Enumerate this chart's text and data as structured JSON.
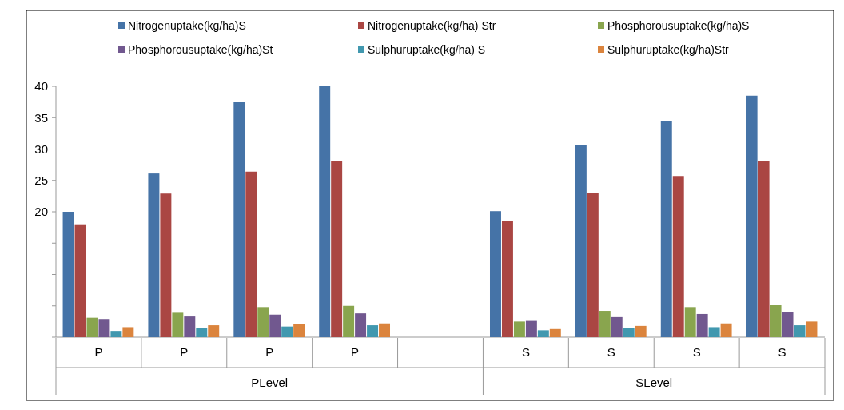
{
  "chart_data": {
    "type": "bar",
    "categories": [
      "P",
      "P",
      "P",
      "P",
      null,
      "S",
      "S",
      "S",
      "S"
    ],
    "series": [
      {
        "name": "Nitrogenuptake(kg/ha)S",
        "color": "#4573a7",
        "values": [
          20,
          26.1,
          37.5,
          40,
          null,
          20.1,
          30.7,
          34.5,
          38.5
        ]
      },
      {
        "name": "Nitrogenuptake(kg/ha) Str",
        "color": "#aa4643",
        "values": [
          18,
          22.9,
          26.4,
          28.1,
          null,
          18.6,
          23,
          25.7,
          28.1
        ]
      },
      {
        "name": "Phosphorousuptake(kg/ha)S",
        "color": "#89a54e",
        "values": [
          3.1,
          3.9,
          4.8,
          5,
          null,
          2.5,
          4.2,
          4.8,
          5.1
        ]
      },
      {
        "name": "Phosphorousuptake(kg/ha)St",
        "color": "#71588f",
        "values": [
          2.9,
          3.3,
          3.6,
          3.8,
          null,
          2.6,
          3.2,
          3.7,
          4
        ]
      },
      {
        "name": "Sulphuruptake(kg/ha) S",
        "color": "#4198af",
        "values": [
          1,
          1.4,
          1.7,
          1.9,
          null,
          1.1,
          1.4,
          1.6,
          1.9
        ]
      },
      {
        "name": "Sulphuruptake(kg/ha)Str",
        "color": "#db843d",
        "values": [
          1.6,
          1.9,
          2.1,
          2.2,
          null,
          1.3,
          1.8,
          2.2,
          2.5
        ]
      }
    ],
    "ylim": [
      0,
      40
    ],
    "yticks": [
      {
        "value": 0,
        "label": null
      },
      {
        "value": 5,
        "label": null
      },
      {
        "value": 10,
        "label": null
      },
      {
        "value": 15,
        "label": null
      },
      {
        "value": 20,
        "label": "20"
      },
      {
        "value": 25,
        "label": "25"
      },
      {
        "value": 30,
        "label": "30"
      },
      {
        "value": 35,
        "label": "35"
      },
      {
        "value": 40,
        "label": "40"
      }
    ],
    "annotations": [
      "PLevel",
      "SLevel"
    ],
    "legend": "top",
    "grid": false
  }
}
